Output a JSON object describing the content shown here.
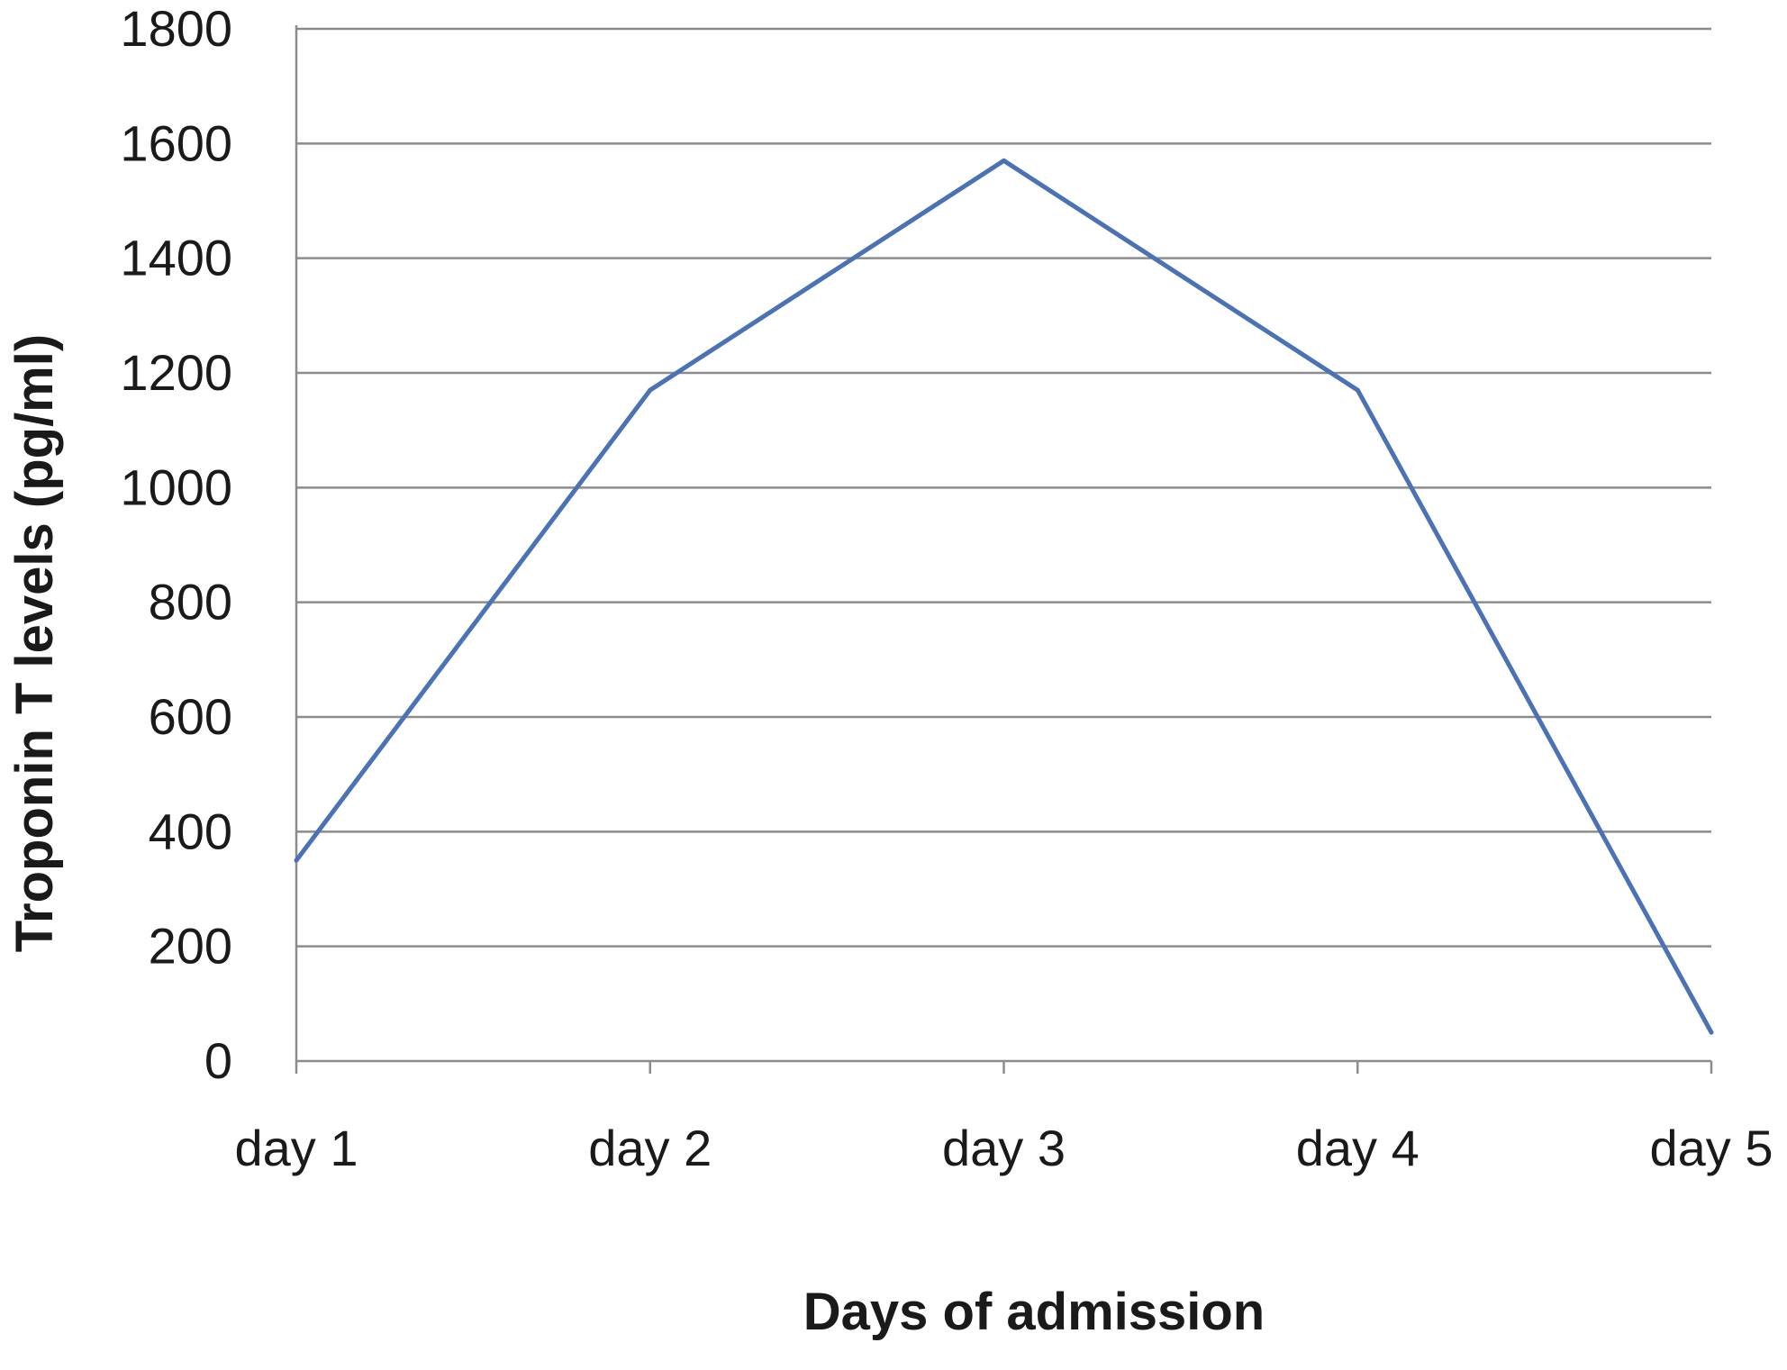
{
  "chart_data": {
    "type": "line",
    "title": "",
    "xlabel": "Days of admission",
    "ylabel": "Troponin T levels (pg/ml)",
    "categories": [
      "day 1",
      "day 2",
      "day 3",
      "day 4",
      "day 5"
    ],
    "series": [
      {
        "values": [
          350,
          1170,
          1570,
          1170,
          50
        ],
        "color": "#4a72b5"
      }
    ],
    "ylim": [
      0,
      1800
    ],
    "yticks": [
      0,
      200,
      400,
      600,
      800,
      1000,
      1200,
      1400,
      1600,
      1800
    ],
    "grid": true,
    "legend": "none"
  }
}
